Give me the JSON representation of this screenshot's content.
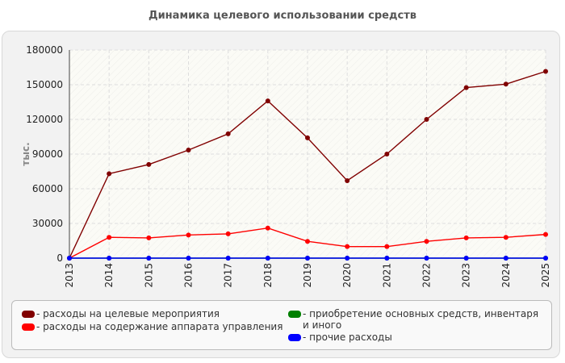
{
  "chart_data": {
    "type": "line",
    "title": "Динамика целевого использовании средств",
    "ylabel": "тыс.",
    "xlabel": "",
    "x": [
      "2013",
      "2014",
      "2015",
      "2016",
      "2017",
      "2018",
      "2019",
      "2020",
      "2021",
      "2022",
      "2023",
      "2024",
      "2025"
    ],
    "ylim": [
      0,
      180000
    ],
    "yticks": [
      0,
      30000,
      60000,
      90000,
      120000,
      150000,
      180000
    ],
    "grid": true,
    "legend_position": "bottom",
    "series": [
      {
        "name": "- расходы на целевые мероприятия",
        "color": "#800000",
        "values": [
          0,
          73000,
          81000,
          93500,
          107500,
          136000,
          104000,
          67000,
          90000,
          120000,
          147500,
          150500,
          161500
        ]
      },
      {
        "name": "- расходы на содержание аппарата управления",
        "color": "#ff0000",
        "values": [
          0,
          18000,
          17500,
          20000,
          21000,
          26000,
          14500,
          10000,
          10000,
          14500,
          17500,
          18000,
          20500
        ]
      },
      {
        "name": "- приобретение основных средств, инвентаря и иного",
        "color": "#008000",
        "values": [
          0,
          0,
          0,
          0,
          0,
          0,
          0,
          0,
          0,
          0,
          0,
          0,
          0
        ]
      },
      {
        "name": "- прочие расходы",
        "color": "#0000ff",
        "values": [
          0,
          0,
          0,
          0,
          0,
          0,
          0,
          0,
          0,
          0,
          0,
          0,
          0
        ]
      }
    ]
  }
}
